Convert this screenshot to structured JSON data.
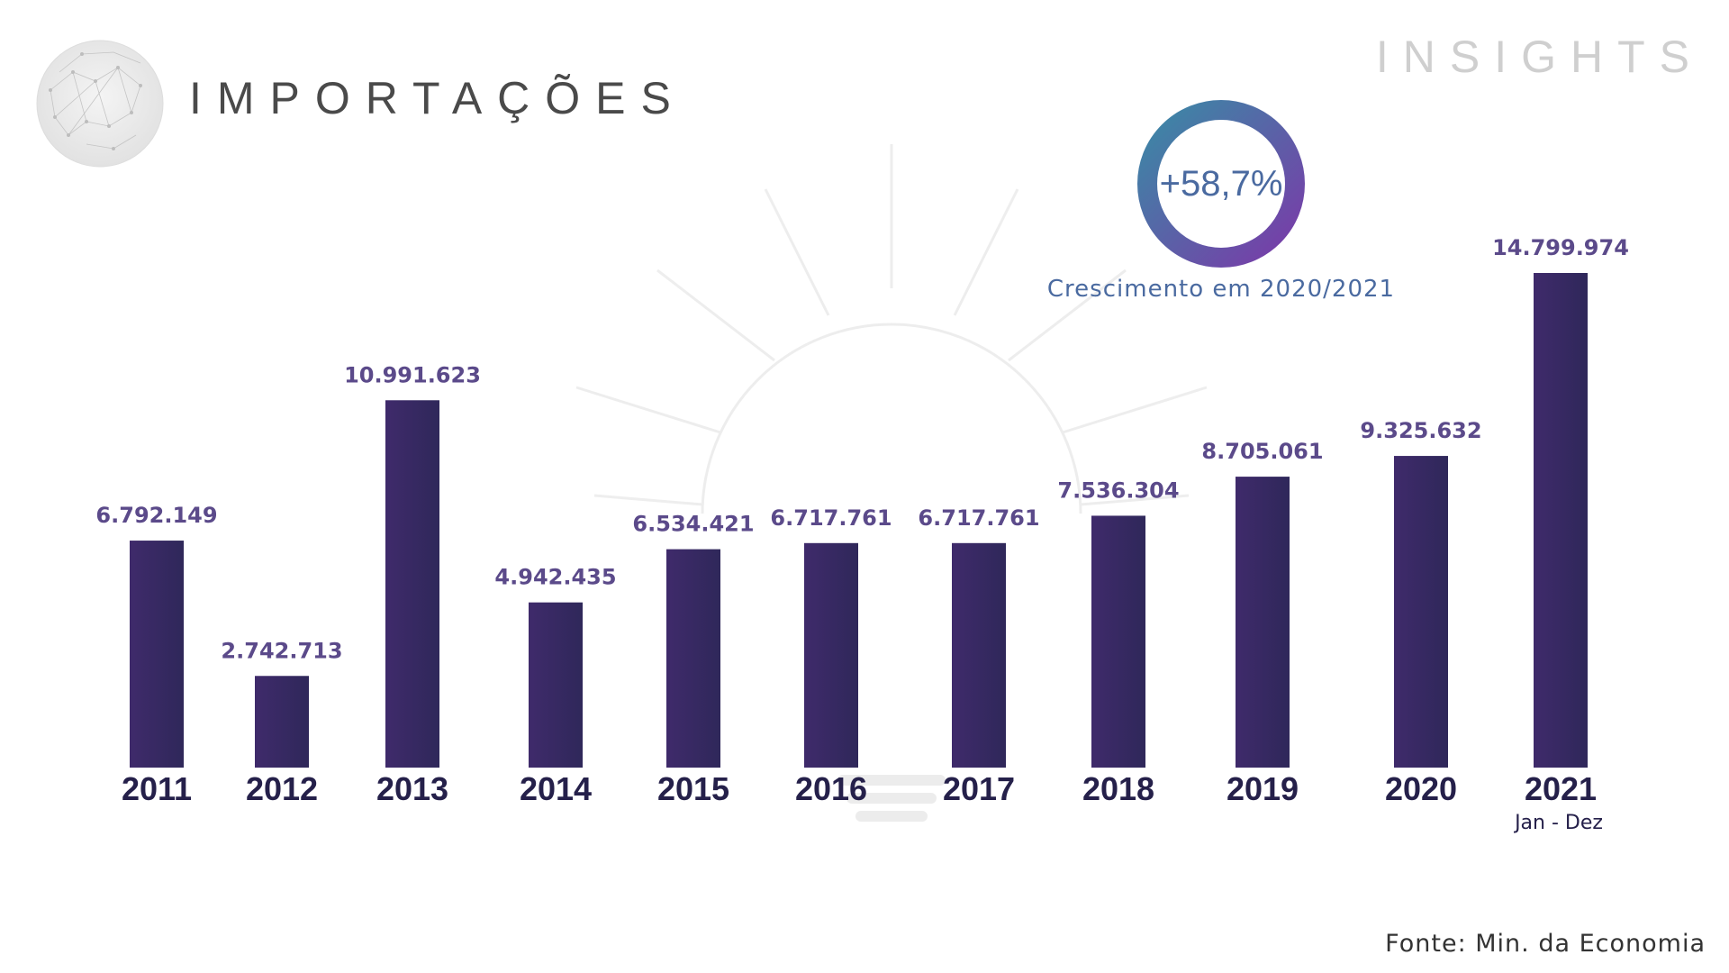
{
  "header": {
    "title": "IMPORTAÇÕES",
    "brand": "INSIGHTS"
  },
  "highlight": {
    "value": "+58,7%",
    "caption": "Crescimento em 2020/2021"
  },
  "footer": {
    "source": "Fonte: Min. da Economia"
  },
  "colors": {
    "bar_start": "#3f2a6b",
    "bar_end": "#2f285a",
    "value_label": "#5b4a8a",
    "year_label": "#25204a",
    "ring_start": "#3a8aa6",
    "ring_end": "#7a3aa8"
  },
  "chart_data": {
    "type": "bar",
    "categories": [
      "2011",
      "2012",
      "2013",
      "2014",
      "2015",
      "2016",
      "2017",
      "2018",
      "2019",
      "2020",
      "2021"
    ],
    "category_sublabels": [
      "",
      "",
      "",
      "",
      "",
      "",
      "",
      "",
      "",
      "",
      "Jan - Dez"
    ],
    "values": [
      6792149,
      2742713,
      10991623,
      4942435,
      6534421,
      6717761,
      6717761,
      7536304,
      8705061,
      9325632,
      14799974
    ],
    "value_labels": [
      "6.792.149",
      "2.742.713",
      "10.991.623",
      "4.942.435",
      "6.534.421",
      "6.717.761",
      "6.717.761",
      "7.536.304",
      "8.705.061",
      "9.325.632",
      "14.799.974"
    ],
    "title": "IMPORTAÇÕES",
    "xlabel": "",
    "ylabel": "",
    "ylim": [
      0,
      15000000
    ],
    "grid": false,
    "legend": "none"
  }
}
